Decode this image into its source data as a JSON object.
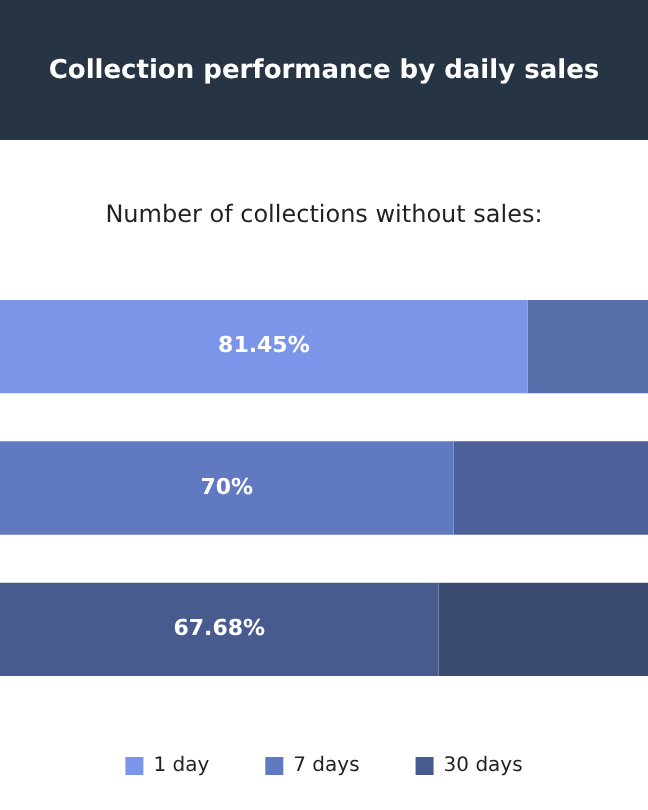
{
  "chart_data": {
    "type": "bar",
    "title": "Collection performance by daily sales",
    "subtitle": "Number of collections without sales:",
    "orientation": "horizontal",
    "stacked": true,
    "categories": [
      null,
      null,
      null
    ],
    "series": [
      {
        "name": "1 day",
        "color": "#7b96e8",
        "values": [
          81.45,
          null,
          null
        ],
        "value_labels": [
          "81.45%",
          null,
          null
        ]
      },
      {
        "name": "7 days",
        "color": "#6079c0",
        "values": [
          null,
          70,
          null
        ],
        "value_labels": [
          null,
          "70%",
          null
        ]
      },
      {
        "name": "30 days",
        "color": "#475b8e",
        "values": [
          null,
          null,
          67.68
        ],
        "value_labels": [
          null,
          null,
          "67.68%"
        ]
      },
      {
        "colors": [
          "#566ea9",
          "#4d6099",
          "#3c4b72"
        ],
        "values": [
          18.55,
          30,
          32.32
        ]
      }
    ],
    "xlim": [
      0,
      100
    ],
    "tick_labels": false,
    "legend": "bottom"
  }
}
